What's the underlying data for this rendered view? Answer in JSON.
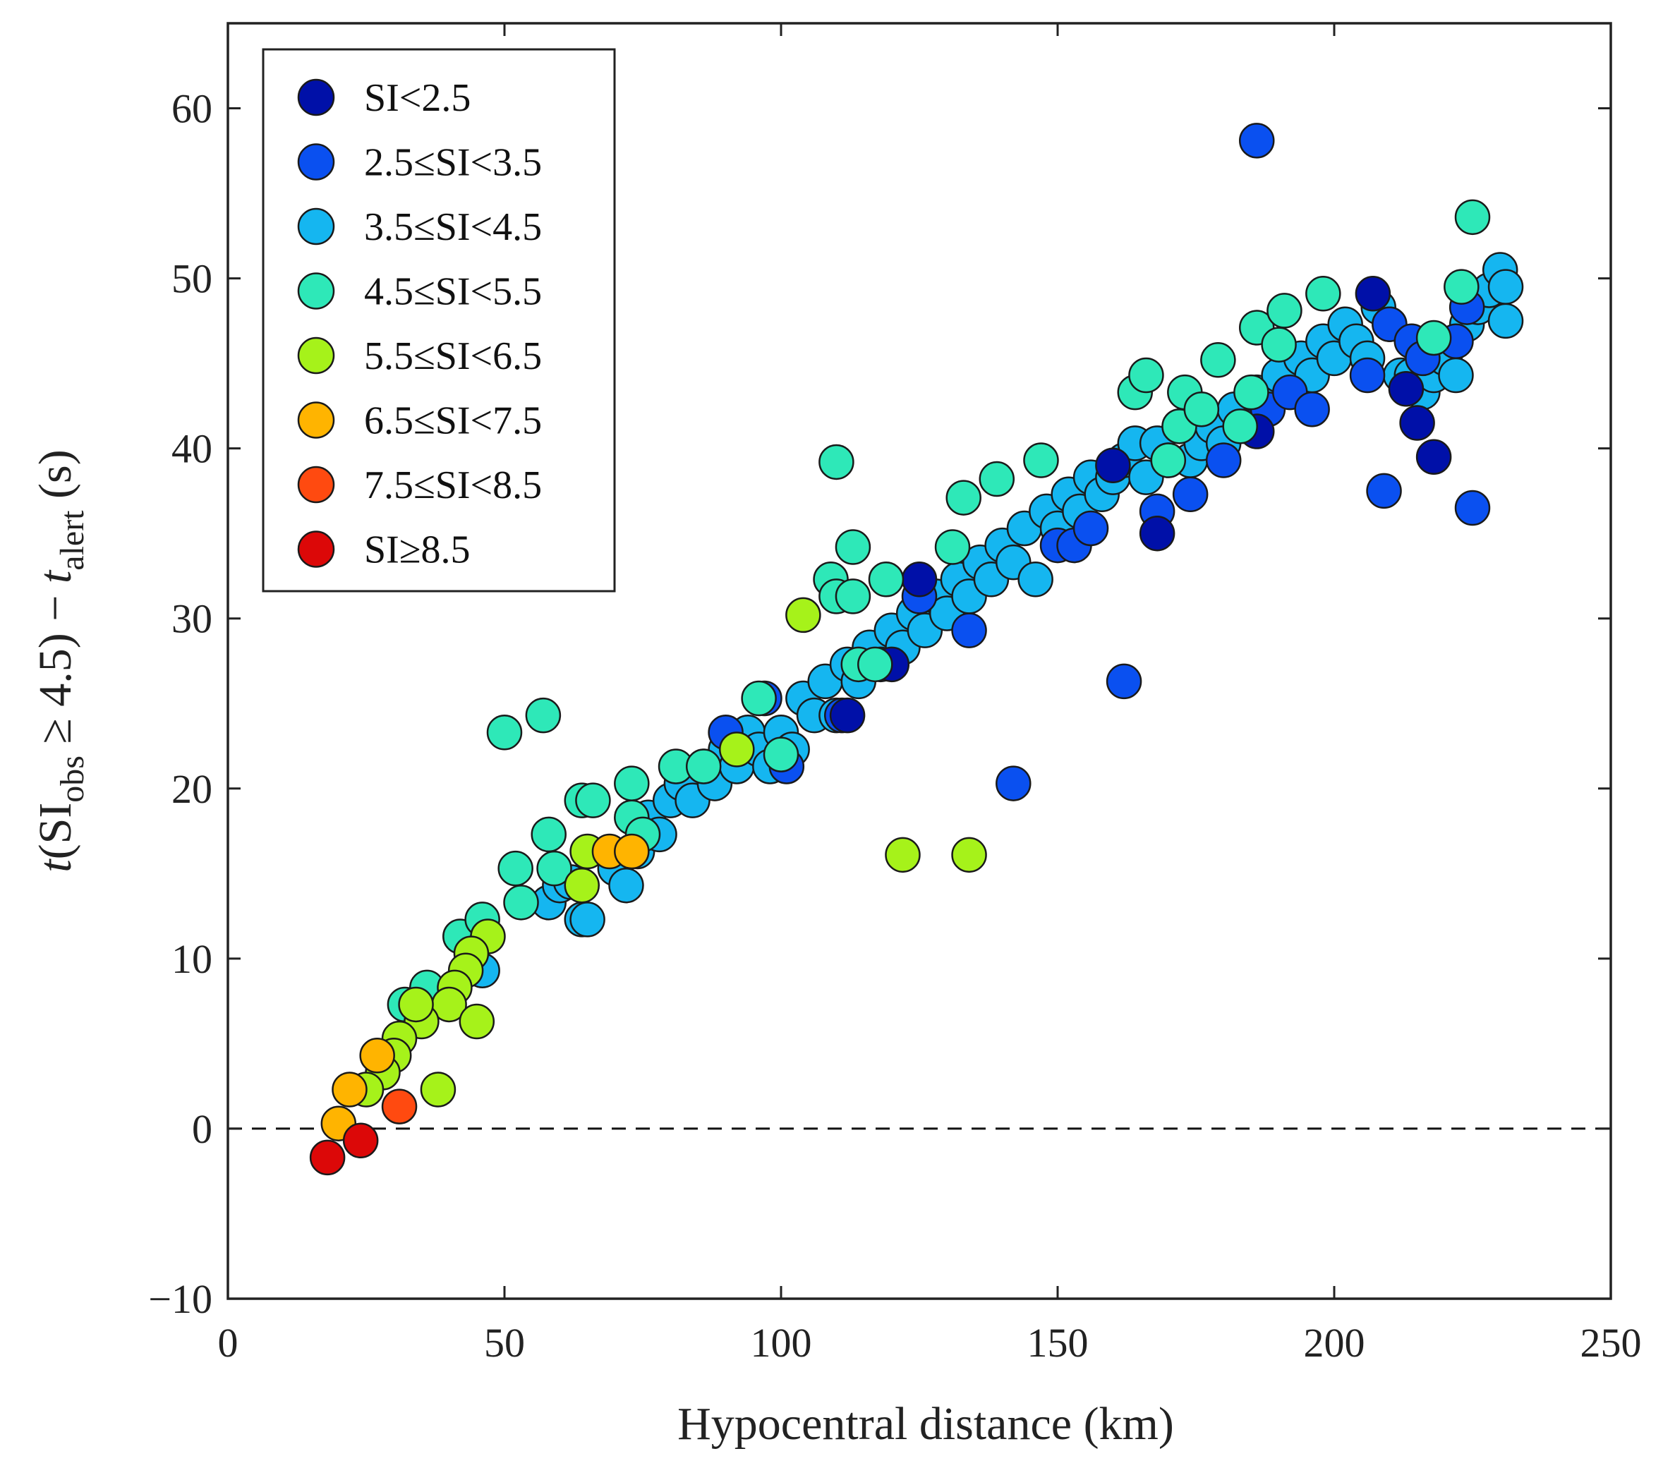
{
  "chart_data": {
    "type": "scatter",
    "xlabel": "Hypocentral distance (km)",
    "ylabel": {
      "italic_t": "t",
      "open": "(SI",
      "sub_obs": "obs",
      "relation": " ≥ 4.5) − ",
      "italic_t2": "t",
      "sub_alert": "alert",
      "unit": " (s)"
    },
    "xlim": [
      0,
      250
    ],
    "ylim": [
      -10,
      65
    ],
    "x_ticks": [
      "0",
      "50",
      "100",
      "150",
      "200",
      "250"
    ],
    "x_tick_values": [
      0,
      50,
      100,
      150,
      200,
      250
    ],
    "y_ticks": [
      "−10",
      "0",
      "10",
      "20",
      "30",
      "40",
      "50",
      "60"
    ],
    "y_tick_values": [
      -10,
      0,
      10,
      20,
      30,
      40,
      50,
      60
    ],
    "reference_line": {
      "y": 0,
      "style": "dashed"
    },
    "legend_position": "top-left",
    "classes": [
      {
        "key": "c1",
        "label": "SI<2.5",
        "color": "#0010a8"
      },
      {
        "key": "c2",
        "label": "2.5≤SI<3.5",
        "color": "#0a50f0"
      },
      {
        "key": "c3",
        "label": "3.5≤SI<4.5",
        "color": "#15b6f0"
      },
      {
        "key": "c4",
        "label": "4.5≤SI<5.5",
        "color": "#2ee8b8"
      },
      {
        "key": "c5",
        "label": "5.5≤SI<6.5",
        "color": "#a6f21a"
      },
      {
        "key": "c6",
        "label": "6.5≤SI<7.5",
        "color": "#ffb400"
      },
      {
        "key": "c7",
        "label": "7.5≤SI<8.5",
        "color": "#ff4a10"
      },
      {
        "key": "c8",
        "label": "SI≥8.5",
        "color": "#dc0808"
      }
    ],
    "series": [
      {
        "class": "c3",
        "points": [
          [
            46,
            9.3
          ],
          [
            58,
            13.3
          ],
          [
            60,
            14.3
          ],
          [
            62,
            14.5
          ],
          [
            64,
            12.3
          ],
          [
            65,
            12.3
          ],
          [
            70,
            15.3
          ],
          [
            72,
            14.3
          ],
          [
            74,
            16.3
          ],
          [
            76,
            18.3
          ],
          [
            78,
            17.3
          ],
          [
            80,
            19.3
          ],
          [
            82,
            20.3
          ],
          [
            84,
            19.3
          ],
          [
            86,
            21.3
          ],
          [
            88,
            20.3
          ],
          [
            90,
            22.3
          ],
          [
            92,
            21.3
          ],
          [
            94,
            23.3
          ],
          [
            96,
            22.3
          ],
          [
            98,
            21.3
          ],
          [
            100,
            23.3
          ],
          [
            102,
            22.3
          ],
          [
            104,
            25.3
          ],
          [
            106,
            24.3
          ],
          [
            108,
            26.3
          ],
          [
            110,
            24.3
          ],
          [
            112,
            27.3
          ],
          [
            114,
            26.3
          ],
          [
            116,
            28.3
          ],
          [
            118,
            27.3
          ],
          [
            120,
            29.3
          ],
          [
            122,
            28.3
          ],
          [
            124,
            30.3
          ],
          [
            126,
            29.3
          ],
          [
            128,
            31.3
          ],
          [
            130,
            30.3
          ],
          [
            132,
            32.3
          ],
          [
            134,
            31.3
          ],
          [
            136,
            33.3
          ],
          [
            138,
            32.3
          ],
          [
            140,
            34.3
          ],
          [
            142,
            33.3
          ],
          [
            144,
            35.3
          ],
          [
            146,
            32.3
          ],
          [
            148,
            36.3
          ],
          [
            150,
            35.3
          ],
          [
            152,
            37.3
          ],
          [
            154,
            36.3
          ],
          [
            156,
            38.3
          ],
          [
            158,
            37.3
          ],
          [
            160,
            38.3
          ],
          [
            162,
            39.3
          ],
          [
            164,
            40.3
          ],
          [
            166,
            38.3
          ],
          [
            168,
            40.3
          ],
          [
            170,
            39.3
          ],
          [
            172,
            41.3
          ],
          [
            174,
            39.3
          ],
          [
            176,
            40.3
          ],
          [
            178,
            41.3
          ],
          [
            180,
            40.3
          ],
          [
            182,
            42.3
          ],
          [
            186,
            43.3
          ],
          [
            190,
            44.3
          ],
          [
            194,
            45.3
          ],
          [
            196,
            44.3
          ],
          [
            198,
            46.3
          ],
          [
            200,
            45.3
          ],
          [
            202,
            47.3
          ],
          [
            204,
            46.3
          ],
          [
            206,
            45.3
          ],
          [
            208,
            48.3
          ],
          [
            210,
            47.3
          ],
          [
            212,
            44.3
          ],
          [
            214,
            44.3
          ],
          [
            216,
            43.3
          ],
          [
            218,
            44.3
          ],
          [
            220,
            45.3
          ],
          [
            222,
            44.3
          ],
          [
            224,
            47.3
          ],
          [
            226,
            48.3
          ],
          [
            228,
            49.3
          ],
          [
            230,
            50.5
          ],
          [
            231,
            49.5
          ],
          [
            231,
            47.5
          ]
        ]
      },
      {
        "class": "c2",
        "points": [
          [
            186,
            58.1
          ],
          [
            162,
            26.3
          ],
          [
            142,
            20.3
          ],
          [
            225,
            36.5
          ],
          [
            209,
            37.5
          ],
          [
            90,
            23.3
          ],
          [
            97,
            25.3
          ],
          [
            101,
            21.3
          ],
          [
            111,
            24.3
          ],
          [
            125,
            31.3
          ],
          [
            134,
            29.3
          ],
          [
            150,
            34.3
          ],
          [
            153,
            34.3
          ],
          [
            156,
            35.3
          ],
          [
            168,
            36.3
          ],
          [
            174,
            37.3
          ],
          [
            180,
            39.3
          ],
          [
            184,
            41.3
          ],
          [
            188,
            42.3
          ],
          [
            192,
            43.3
          ],
          [
            196,
            42.3
          ],
          [
            206,
            44.3
          ],
          [
            210,
            47.3
          ],
          [
            214,
            46.3
          ],
          [
            216,
            45.3
          ],
          [
            222,
            46.3
          ],
          [
            224,
            48.3
          ]
        ]
      },
      {
        "class": "c1",
        "points": [
          [
            218,
            39.5
          ],
          [
            215,
            41.5
          ],
          [
            168,
            35.0
          ],
          [
            207,
            49.1
          ],
          [
            213,
            43.5
          ],
          [
            125,
            32.3
          ],
          [
            112,
            24.3
          ],
          [
            120,
            27.3
          ],
          [
            160,
            39.0
          ],
          [
            186,
            41.0
          ]
        ]
      },
      {
        "class": "c4",
        "points": [
          [
            50,
            23.3
          ],
          [
            57,
            24.3
          ],
          [
            42,
            11.3
          ],
          [
            46,
            12.3
          ],
          [
            52,
            15.3
          ],
          [
            53,
            13.3
          ],
          [
            58,
            17.3
          ],
          [
            59,
            15.3
          ],
          [
            64,
            19.3
          ],
          [
            66,
            19.3
          ],
          [
            73,
            20.3
          ],
          [
            73,
            18.3
          ],
          [
            75,
            17.3
          ],
          [
            81,
            21.3
          ],
          [
            86,
            21.3
          ],
          [
            96,
            25.3
          ],
          [
            100,
            22.0
          ],
          [
            109,
            32.3
          ],
          [
            110,
            39.2
          ],
          [
            113,
            34.2
          ],
          [
            110,
            31.3
          ],
          [
            113,
            31.3
          ],
          [
            114,
            27.3
          ],
          [
            117,
            27.3
          ],
          [
            119,
            32.3
          ],
          [
            131,
            34.2
          ],
          [
            133,
            37.1
          ],
          [
            139,
            38.2
          ],
          [
            147,
            39.3
          ],
          [
            164,
            43.3
          ],
          [
            166,
            44.3
          ],
          [
            170,
            39.3
          ],
          [
            172,
            41.3
          ],
          [
            173,
            43.3
          ],
          [
            176,
            42.3
          ],
          [
            179,
            45.2
          ],
          [
            183,
            41.3
          ],
          [
            185,
            43.3
          ],
          [
            186,
            47.1
          ],
          [
            190,
            46.1
          ],
          [
            191,
            48.1
          ],
          [
            198,
            49.1
          ],
          [
            218,
            46.5
          ],
          [
            223,
            49.5
          ],
          [
            225,
            53.6
          ],
          [
            32,
            7.3
          ],
          [
            36,
            8.3
          ]
        ]
      },
      {
        "class": "c5",
        "points": [
          [
            104,
            30.2
          ],
          [
            92,
            22.3
          ],
          [
            122,
            16.1
          ],
          [
            134,
            16.1
          ],
          [
            64,
            14.3
          ],
          [
            65,
            16.3
          ],
          [
            47,
            11.3
          ],
          [
            44,
            10.3
          ],
          [
            43,
            9.3
          ],
          [
            41,
            8.3
          ],
          [
            40,
            7.3
          ],
          [
            38,
            2.3
          ],
          [
            45,
            6.3
          ],
          [
            35,
            6.3
          ],
          [
            34,
            7.3
          ],
          [
            31,
            5.3
          ],
          [
            30,
            4.3
          ],
          [
            28,
            3.3
          ],
          [
            25,
            2.3
          ]
        ]
      },
      {
        "class": "c6",
        "points": [
          [
            69,
            16.3
          ],
          [
            73,
            16.3
          ],
          [
            27,
            4.3
          ],
          [
            22,
            2.3
          ],
          [
            20,
            0.3
          ]
        ]
      },
      {
        "class": "c7",
        "points": [
          [
            31,
            1.3
          ]
        ]
      },
      {
        "class": "c8",
        "points": [
          [
            18,
            -1.7
          ],
          [
            24,
            -0.7
          ]
        ]
      }
    ]
  }
}
